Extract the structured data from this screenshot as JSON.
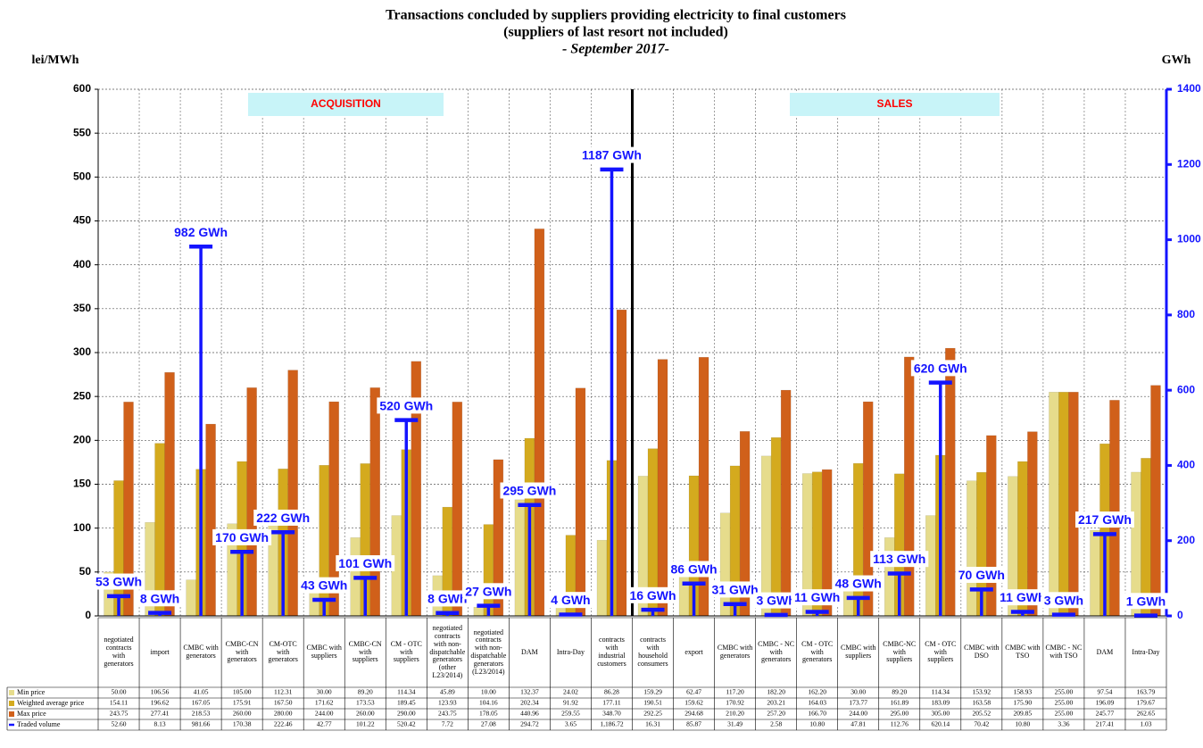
{
  "chart_data": {
    "type": "bar",
    "title": "Transactions concluded by suppliers providing electricity to final customers",
    "subtitle": "(suppliers of last resort not included)",
    "period": "- September 2017-",
    "y_label": "lei/MWh",
    "y2_label": "GWh",
    "annotations": [
      "ACQUISITION",
      "SALES"
    ],
    "categories": [
      "negotiated contracts with generators",
      "import",
      "CMBC with generators",
      "CMBC-CN with generators",
      "CM-OTC with generators",
      "CMBC with suppliers",
      "CMBC-CN with suppliers",
      "CM - OTC with suppliers",
      "negotiated contracts with non-dispatchable generators (other L23/2014)",
      "negotiated contracts with non-dispatchable generators (L23/2014)",
      "DAM",
      "Intra-Day",
      "contracts with industrial customers",
      "contracts with household consumers",
      "export",
      "CMBC with generators",
      "CMBC - NC with generators",
      "CM - OTC with generators",
      "CMBC with suppliers",
      "CMBC-NC with suppliers",
      "CM - OTC with suppliers",
      "CMBC with DSO",
      "CMBC with TSO",
      "CMBC - NC with TSO",
      "DAM",
      "Intra-Day"
    ],
    "series": [
      {
        "name": "Min price",
        "color": "#e6dc8c",
        "values": [
          50.0,
          106.56,
          41.05,
          105.0,
          112.31,
          30.0,
          89.2,
          114.34,
          45.89,
          10.0,
          132.37,
          24.02,
          86.28,
          159.29,
          62.47,
          117.2,
          182.2,
          162.2,
          30.0,
          89.2,
          114.34,
          153.92,
          158.93,
          255.0,
          97.54,
          163.79
        ],
        "value_labels": [
          "50.00",
          "106.56",
          "41.05",
          "105.00",
          "112.31",
          "30.00",
          "89.20",
          "114.34",
          "45.89",
          "10.00",
          "132.37",
          "24.02",
          "86.28",
          "159.29",
          "62.47",
          "117.20",
          "182.20",
          "162.20",
          "30.00",
          "89.20",
          "114.34",
          "153.92",
          "158.93",
          "255.00",
          "97.54",
          "163.79"
        ]
      },
      {
        "name": "Weighted average price",
        "color": "#d4aa1e",
        "values": [
          154.11,
          196.62,
          167.05,
          175.91,
          167.5,
          171.62,
          173.53,
          189.45,
          123.93,
          104.16,
          202.34,
          91.92,
          177.11,
          190.51,
          159.62,
          170.92,
          203.21,
          164.03,
          173.77,
          161.89,
          183.09,
          163.58,
          175.9,
          255.0,
          196.09,
          179.67
        ],
        "value_labels": [
          "154.11",
          "196.62",
          "167.05",
          "175.91",
          "167.50",
          "171.62",
          "173.53",
          "189.45",
          "123.93",
          "104.16",
          "202.34",
          "91.92",
          "177.11",
          "190.51",
          "159.62",
          "170.92",
          "203.21",
          "164.03",
          "173.77",
          "161.89",
          "183.09",
          "163.58",
          "175.90",
          "255.00",
          "196.09",
          "179.67"
        ]
      },
      {
        "name": "Max price",
        "color": "#d0601a",
        "values": [
          243.75,
          277.41,
          218.53,
          260.0,
          280.0,
          244.0,
          260.0,
          290.0,
          243.75,
          178.05,
          440.96,
          259.55,
          348.7,
          292.25,
          294.68,
          210.2,
          257.2,
          166.7,
          244.0,
          295.0,
          305.0,
          205.52,
          209.85,
          255.0,
          245.77,
          262.65
        ],
        "value_labels": [
          "243.75",
          "277.41",
          "218.53",
          "260.00",
          "280.00",
          "244.00",
          "260.00",
          "290.00",
          "243.75",
          "178.05",
          "440.96",
          "259.55",
          "348.70",
          "292.25",
          "294.68",
          "210.20",
          "257.20",
          "166.70",
          "244.00",
          "295.00",
          "305.00",
          "205.52",
          "209.85",
          "255.00",
          "245.77",
          "262.65"
        ]
      },
      {
        "name": "Traded volume",
        "color": "#1414ff",
        "axis": "y2",
        "values": [
          52.6,
          8.13,
          981.66,
          170.38,
          222.46,
          42.77,
          101.22,
          520.42,
          7.72,
          27.08,
          294.72,
          3.65,
          1186.72,
          16.31,
          85.87,
          31.49,
          2.58,
          10.8,
          47.81,
          112.76,
          620.14,
          70.42,
          10.8,
          3.36,
          217.41,
          1.03
        ],
        "value_labels": [
          "52.60",
          "8.13",
          "981.66",
          "170.38",
          "222.46",
          "42.77",
          "101.22",
          "520.42",
          "7.72",
          "27.08",
          "294.72",
          "3.65",
          "1,186.72",
          "16.31",
          "85.87",
          "31.49",
          "2.58",
          "10.80",
          "47.81",
          "112.76",
          "620.14",
          "70.42",
          "10.80",
          "3.36",
          "217.41",
          "1.03"
        ],
        "data_labels": [
          "53 GWh",
          "8 GWh",
          "982 GWh",
          "170 GWh",
          "222 GWh",
          "43 GWh",
          "101 GWh",
          "520 GWh",
          "8 GWh",
          "27 GWh",
          "295 GWh",
          "4 GWh",
          "1187 GWh",
          "16 GWh",
          "86 GWh",
          "31 GWh",
          "3 GWh",
          "11 GWh",
          "48 GWh",
          "113 GWh",
          "620 GWh",
          "70 GWh",
          "11 GWh",
          "3 GWh",
          "217 GWh",
          "1 GWh"
        ]
      }
    ],
    "ylim": [
      0,
      600
    ],
    "yticks": [
      0,
      50,
      100,
      150,
      200,
      250,
      300,
      350,
      400,
      450,
      500,
      550,
      600
    ],
    "y2lim": [
      0,
      1400
    ],
    "y2ticks": [
      0,
      200,
      400,
      600,
      800,
      1000,
      1200,
      1400
    ],
    "grid": true
  }
}
